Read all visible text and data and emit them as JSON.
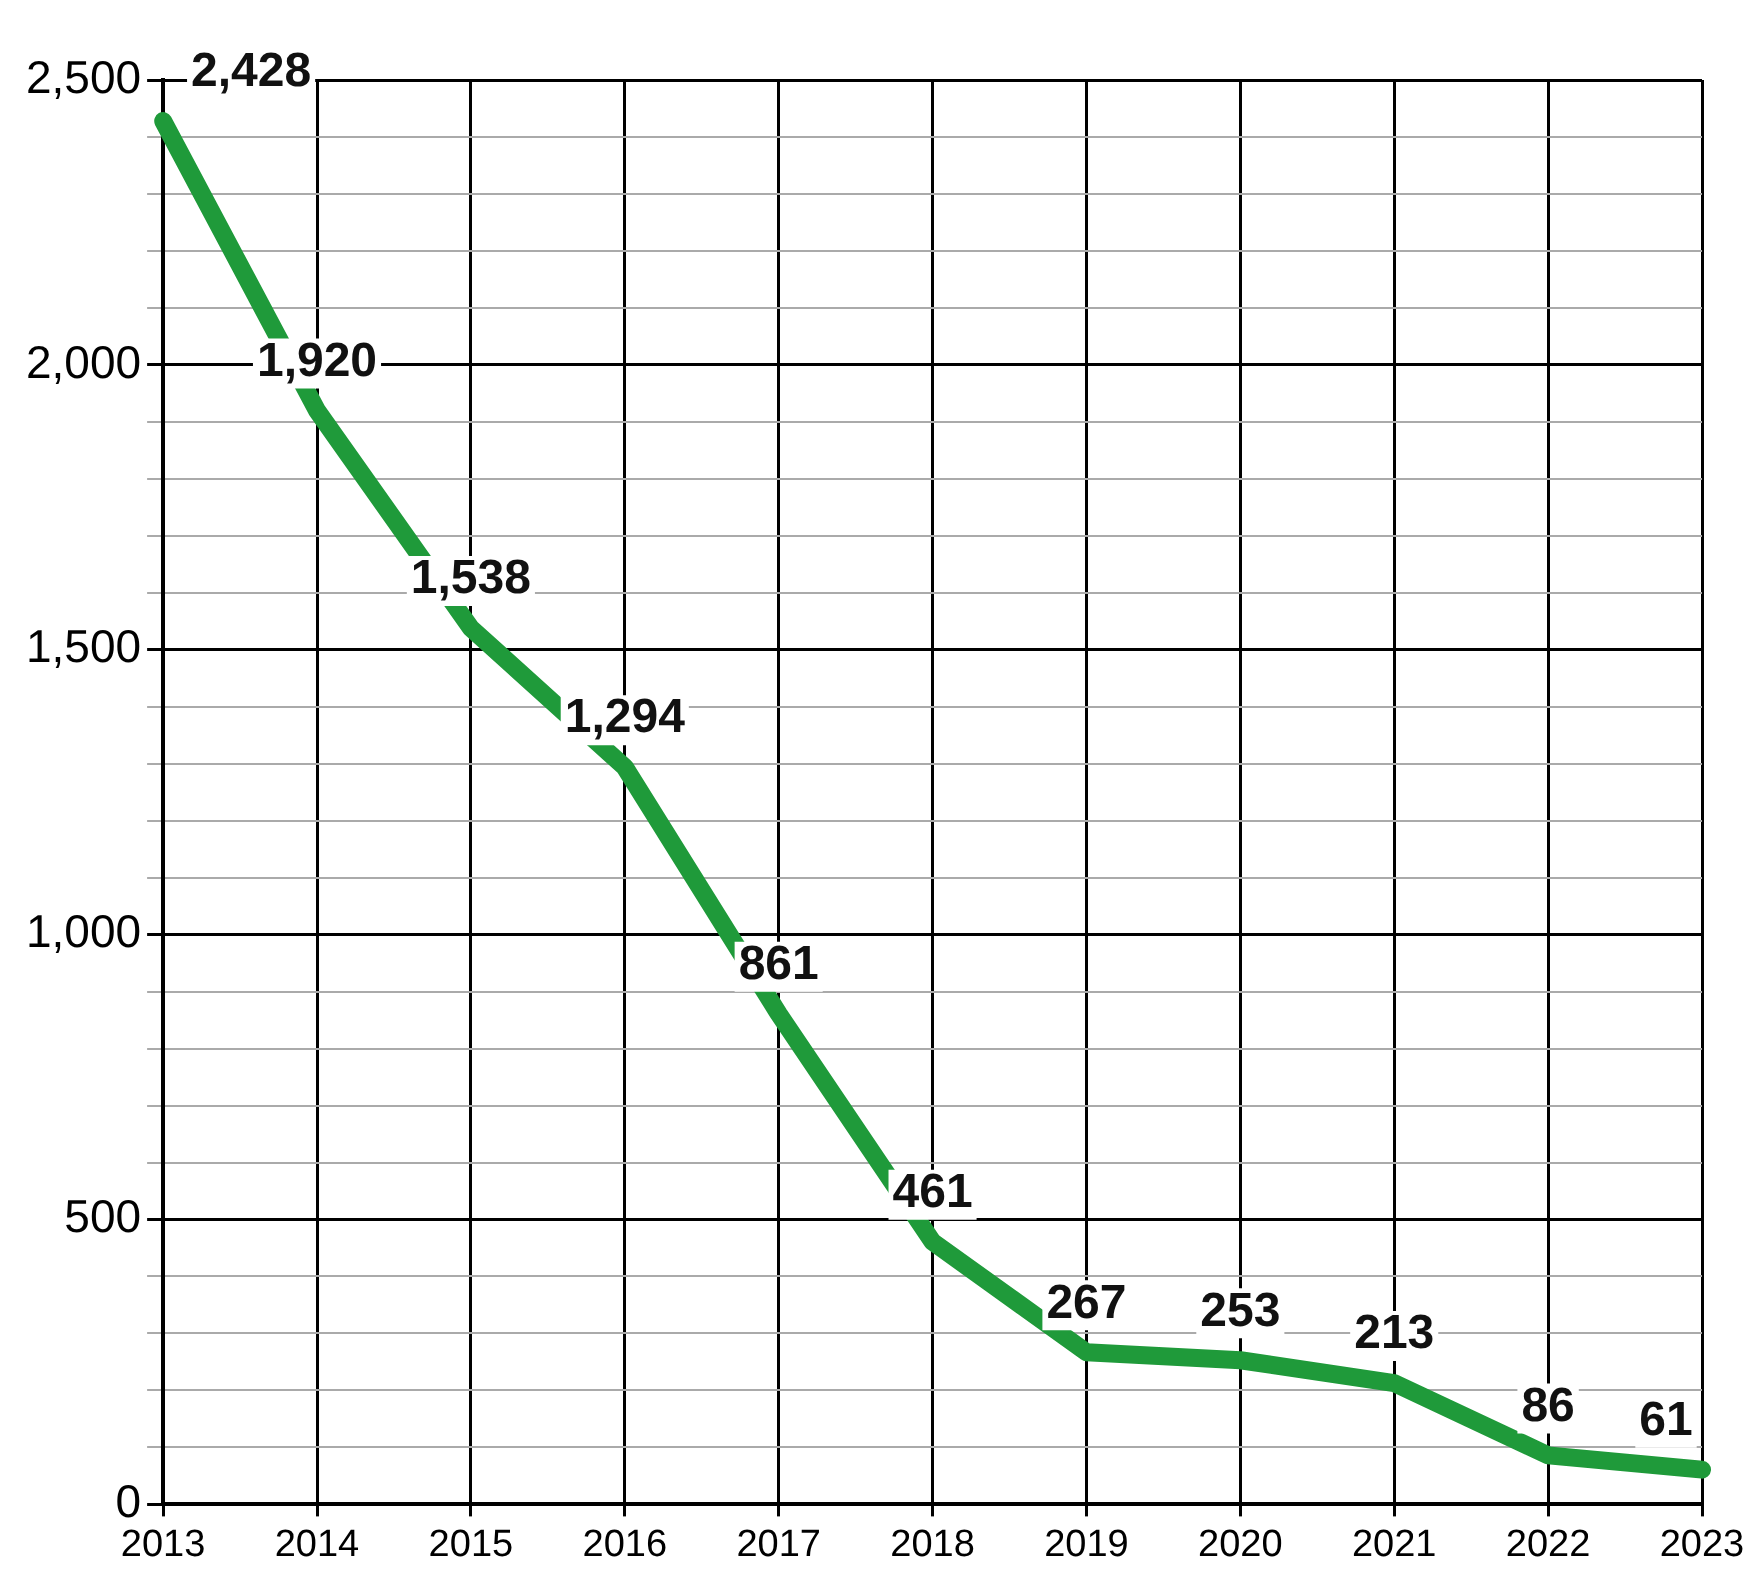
{
  "chart_data": {
    "type": "line",
    "categories": [
      "2013",
      "2014",
      "2015",
      "2016",
      "2017",
      "2018",
      "2019",
      "2020",
      "2021",
      "2022",
      "2023"
    ],
    "series": [
      {
        "color": "#1f9a3a",
        "values": [
          2428,
          1920,
          1538,
          1294,
          861,
          461,
          267,
          253,
          213,
          86,
          61
        ],
        "value_labels": [
          "2,428",
          "1,920",
          "1,538",
          "1,294",
          "861",
          "461",
          "267",
          "253",
          "213",
          "86",
          "61"
        ]
      }
    ],
    "ylim": [
      0,
      2500
    ],
    "yticks": [
      0,
      {
        "value": 100,
        "label": null
      },
      {
        "value": 200,
        "label": null
      },
      {
        "value": 300,
        "label": null
      },
      {
        "value": 400,
        "label": null
      },
      {
        "value": 500,
        "label": "500"
      },
      {
        "value": 600,
        "label": null
      },
      {
        "value": 700,
        "label": null
      },
      {
        "value": 800,
        "label": null
      },
      {
        "value": 900,
        "label": null
      },
      {
        "value": 1000,
        "label": "1,000"
      },
      {
        "value": 1100,
        "label": null
      },
      {
        "value": 1200,
        "label": null
      },
      {
        "value": 1300,
        "label": null
      },
      {
        "value": 1400,
        "label": null
      },
      {
        "value": 1500,
        "label": "1,500"
      },
      {
        "value": 1600,
        "label": null
      },
      {
        "value": 1700,
        "label": null
      },
      {
        "value": 1800,
        "label": null
      },
      {
        "value": 1900,
        "label": null
      },
      {
        "value": 2000,
        "label": "2,000"
      },
      {
        "value": 2100,
        "label": null
      },
      {
        "value": 2200,
        "label": null
      },
      {
        "value": 2300,
        "label": null
      },
      {
        "value": 2400,
        "label": null
      },
      {
        "value": 2500,
        "label": "2,500"
      }
    ],
    "grid": true,
    "marker": "none",
    "line_style": "solid",
    "legend": false
  }
}
